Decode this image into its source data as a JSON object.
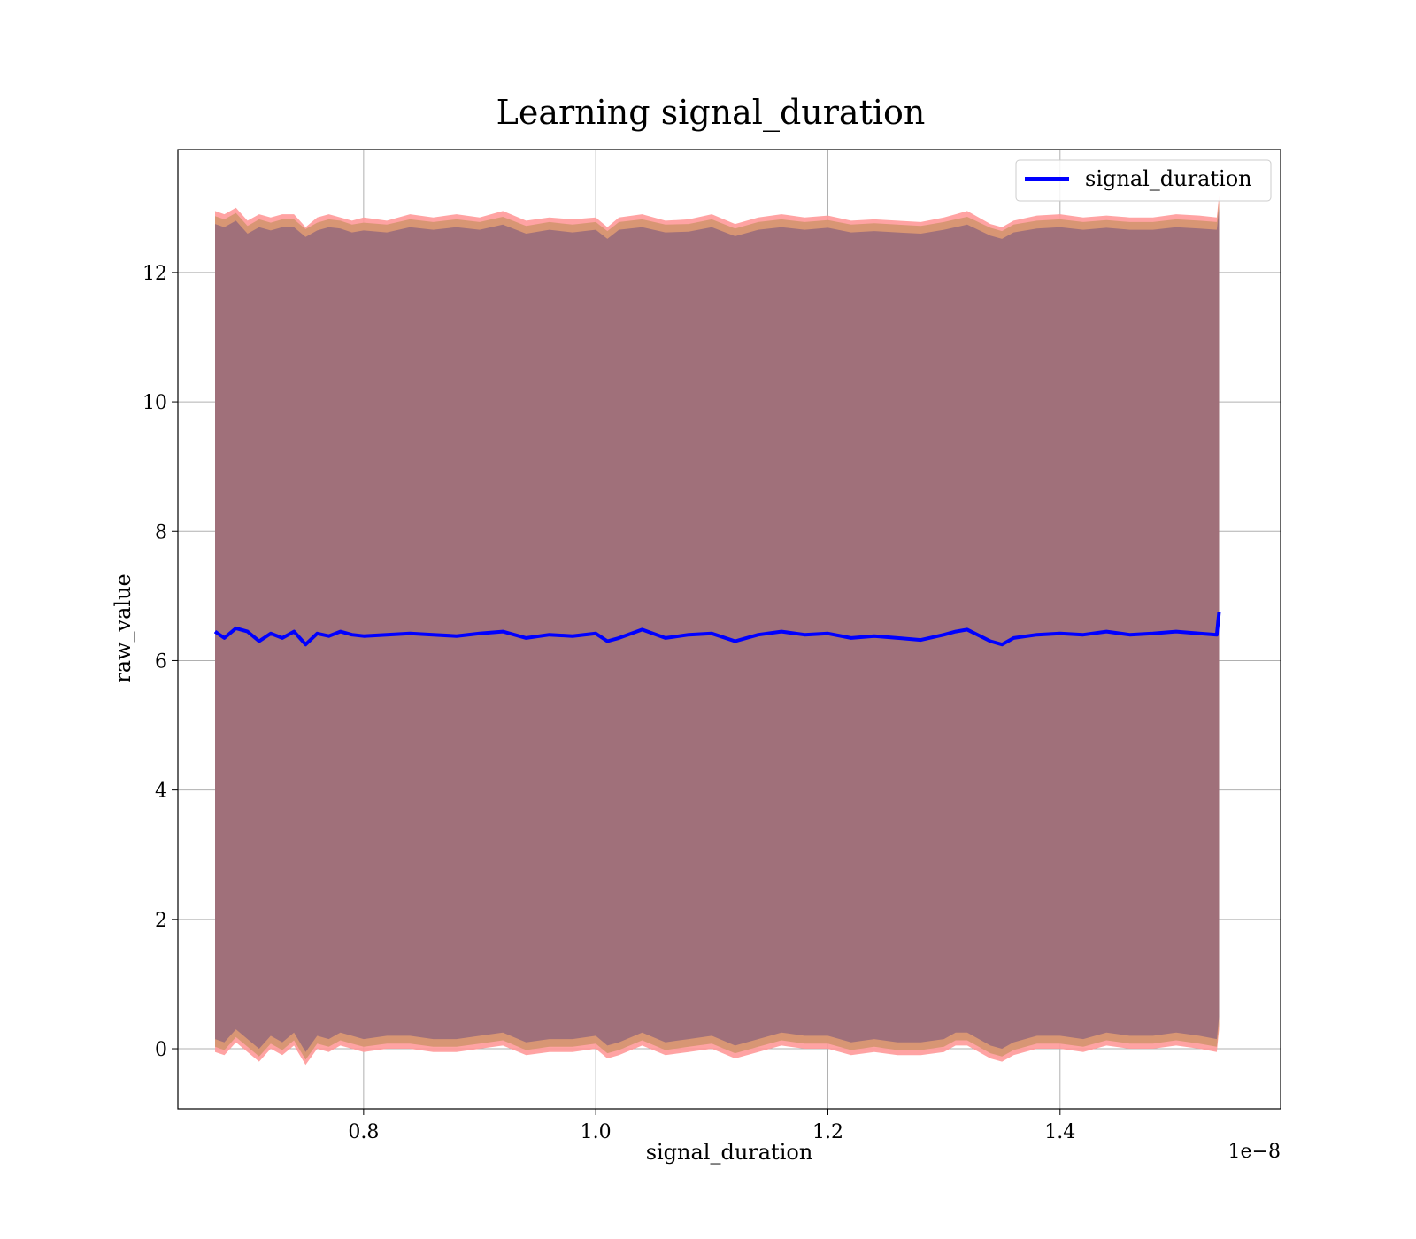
{
  "chart_data": {
    "type": "line",
    "title": "Learning signal_duration",
    "xlabel": "signal_duration",
    "ylabel": "raw_value",
    "x_offset_text": "1e−8",
    "x_scale_factor": 1e-08,
    "xlim": [
      0.64,
      1.59
    ],
    "ylim": [
      -0.93,
      13.9
    ],
    "x_ticks": [
      0.8,
      1.0,
      1.2,
      1.4
    ],
    "x_tick_labels": [
      "0.8",
      "1.0",
      "1.2",
      "1.4"
    ],
    "y_ticks": [
      0,
      2,
      4,
      6,
      8,
      10,
      12
    ],
    "y_tick_labels": [
      "0",
      "2",
      "4",
      "6",
      "8",
      "10",
      "12"
    ],
    "grid": true,
    "legend_position": "top-right",
    "colors": {
      "line": "#0000ff",
      "band_outer": "#ff9999",
      "band_middle": "#d4956f",
      "band_inner": "#a0707a",
      "grid": "#b0b0b0"
    },
    "series": [
      {
        "name": "signal_duration",
        "x": [
          0.672,
          0.68,
          0.69,
          0.7,
          0.71,
          0.72,
          0.73,
          0.74,
          0.75,
          0.76,
          0.77,
          0.78,
          0.79,
          0.8,
          0.82,
          0.84,
          0.86,
          0.88,
          0.9,
          0.92,
          0.94,
          0.96,
          0.98,
          1.0,
          1.01,
          1.02,
          1.04,
          1.06,
          1.08,
          1.1,
          1.12,
          1.14,
          1.16,
          1.18,
          1.2,
          1.22,
          1.24,
          1.26,
          1.28,
          1.3,
          1.31,
          1.32,
          1.34,
          1.35,
          1.36,
          1.38,
          1.4,
          1.42,
          1.44,
          1.46,
          1.48,
          1.5,
          1.52,
          1.535,
          1.537
        ],
        "y": [
          6.45,
          6.35,
          6.5,
          6.45,
          6.3,
          6.42,
          6.35,
          6.45,
          6.25,
          6.42,
          6.38,
          6.45,
          6.4,
          6.38,
          6.4,
          6.42,
          6.4,
          6.38,
          6.42,
          6.45,
          6.35,
          6.4,
          6.38,
          6.42,
          6.3,
          6.35,
          6.48,
          6.35,
          6.4,
          6.42,
          6.3,
          6.4,
          6.45,
          6.4,
          6.42,
          6.35,
          6.38,
          6.35,
          6.32,
          6.4,
          6.45,
          6.48,
          6.3,
          6.25,
          6.35,
          6.4,
          6.42,
          6.4,
          6.45,
          6.4,
          6.42,
          6.45,
          6.42,
          6.4,
          6.75
        ],
        "band_outer_upper": [
          12.95,
          12.9,
          13.0,
          12.8,
          12.9,
          12.85,
          12.9,
          12.9,
          12.7,
          12.85,
          12.9,
          12.85,
          12.8,
          12.85,
          12.8,
          12.9,
          12.85,
          12.9,
          12.85,
          12.95,
          12.8,
          12.85,
          12.82,
          12.85,
          12.7,
          12.85,
          12.9,
          12.8,
          12.82,
          12.9,
          12.75,
          12.85,
          12.9,
          12.85,
          12.88,
          12.8,
          12.82,
          12.8,
          12.78,
          12.85,
          12.9,
          12.95,
          12.75,
          12.7,
          12.8,
          12.88,
          12.9,
          12.85,
          12.88,
          12.85,
          12.85,
          12.9,
          12.88,
          12.85,
          13.2
        ],
        "band_outer_lower": [
          -0.05,
          -0.1,
          0.1,
          -0.05,
          -0.2,
          0.0,
          -0.1,
          0.05,
          -0.25,
          0.0,
          -0.05,
          0.05,
          0.0,
          -0.05,
          0.0,
          0.0,
          -0.05,
          -0.05,
          0.0,
          0.05,
          -0.1,
          -0.05,
          -0.05,
          0.0,
          -0.15,
          -0.1,
          0.05,
          -0.1,
          -0.05,
          0.0,
          -0.15,
          -0.05,
          0.05,
          0.0,
          0.0,
          -0.1,
          -0.05,
          -0.1,
          -0.1,
          -0.05,
          0.05,
          0.05,
          -0.15,
          -0.2,
          -0.1,
          0.0,
          0.0,
          -0.05,
          0.05,
          0.0,
          0.0,
          0.05,
          0.0,
          -0.05,
          0.3
        ],
        "band_inner_upper": [
          12.75,
          12.7,
          12.8,
          12.6,
          12.7,
          12.65,
          12.7,
          12.7,
          12.55,
          12.65,
          12.7,
          12.68,
          12.62,
          12.65,
          12.62,
          12.7,
          12.66,
          12.7,
          12.66,
          12.74,
          12.6,
          12.66,
          12.62,
          12.66,
          12.52,
          12.66,
          12.7,
          12.62,
          12.63,
          12.7,
          12.56,
          12.66,
          12.7,
          12.66,
          12.69,
          12.62,
          12.64,
          12.62,
          12.6,
          12.66,
          12.7,
          12.74,
          12.57,
          12.52,
          12.62,
          12.68,
          12.7,
          12.66,
          12.69,
          12.66,
          12.66,
          12.7,
          12.68,
          12.66,
          13.0
        ],
        "band_inner_lower": [
          0.15,
          0.1,
          0.3,
          0.15,
          0.0,
          0.2,
          0.1,
          0.25,
          -0.05,
          0.2,
          0.15,
          0.25,
          0.2,
          0.15,
          0.2,
          0.2,
          0.15,
          0.15,
          0.2,
          0.25,
          0.1,
          0.15,
          0.15,
          0.2,
          0.05,
          0.1,
          0.25,
          0.1,
          0.15,
          0.2,
          0.05,
          0.15,
          0.25,
          0.2,
          0.2,
          0.1,
          0.15,
          0.1,
          0.1,
          0.15,
          0.25,
          0.25,
          0.05,
          0.0,
          0.1,
          0.2,
          0.2,
          0.15,
          0.25,
          0.2,
          0.2,
          0.25,
          0.2,
          0.15,
          0.5
        ]
      }
    ]
  }
}
